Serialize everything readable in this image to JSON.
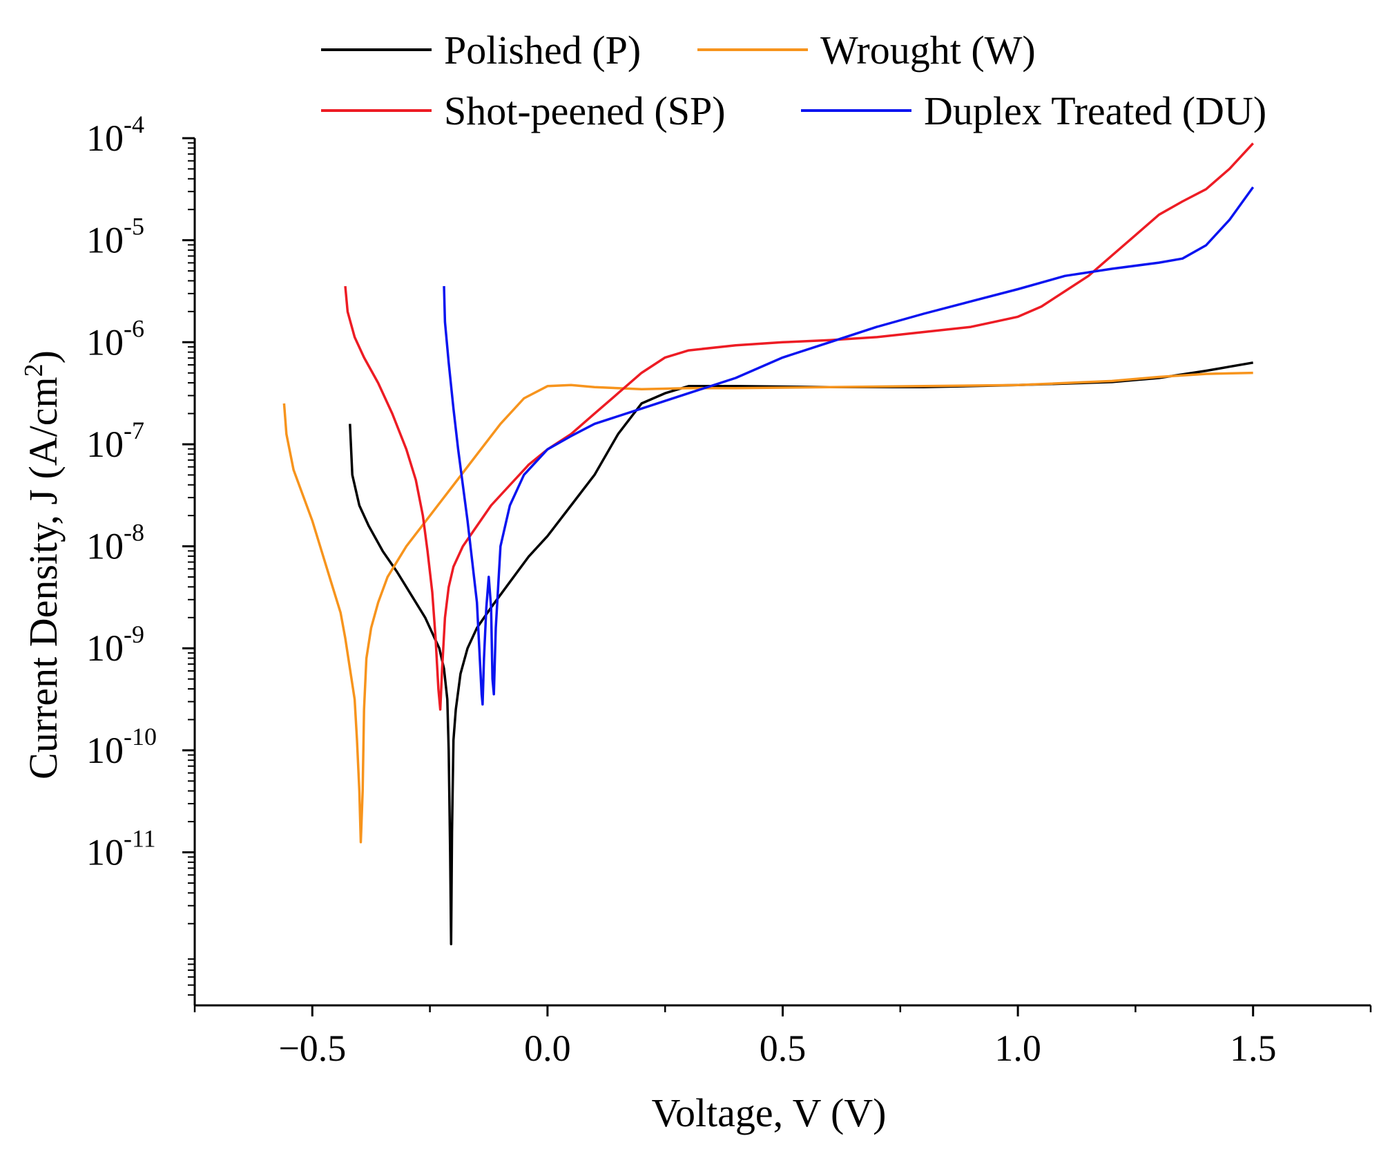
{
  "chart_data": {
    "type": "line",
    "title": "",
    "xlabel": "Voltage, V (V)",
    "ylabel": "Current Density, J (A/cm",
    "ylabel_sup": "2",
    "ylabel_close": ")",
    "xlim": [
      -0.75,
      1.75
    ],
    "ylim_exp": [
      -12.5,
      -4
    ],
    "yscale": "log",
    "x_ticks": [
      {
        "value": -0.5,
        "label": "−0.5"
      },
      {
        "value": 0.0,
        "label": "0.0"
      },
      {
        "value": 0.5,
        "label": "0.5"
      },
      {
        "value": 1.0,
        "label": "1.0"
      },
      {
        "value": 1.5,
        "label": "1.5"
      }
    ],
    "y_ticks": [
      {
        "exp": -4,
        "base": "10",
        "sup": "-4"
      },
      {
        "exp": -5,
        "base": "10",
        "sup": "-5"
      },
      {
        "exp": -6,
        "base": "10",
        "sup": "-6"
      },
      {
        "exp": -7,
        "base": "10",
        "sup": "-7"
      },
      {
        "exp": -8,
        "base": "10",
        "sup": "-8"
      },
      {
        "exp": -9,
        "base": "10",
        "sup": "-9"
      },
      {
        "exp": -10,
        "base": "10",
        "sup": "-10"
      },
      {
        "exp": -11,
        "base": "10",
        "sup": "-11"
      }
    ],
    "legend": [
      {
        "name": "Polished (P)",
        "color": "#000000"
      },
      {
        "name": "Wrought (W)",
        "color": "#f7941d"
      },
      {
        "name": "Shot-peened (SP)",
        "color": "#ed1c24"
      },
      {
        "name": "Duplex Treated (DU)",
        "color": "#0a14f0"
      }
    ],
    "series": [
      {
        "name": "Polished (P)",
        "color": "#000000",
        "points": [
          [
            -0.42,
            -6.8
          ],
          [
            -0.415,
            -7.3
          ],
          [
            -0.4,
            -7.6
          ],
          [
            -0.38,
            -7.8
          ],
          [
            -0.35,
            -8.05
          ],
          [
            -0.32,
            -8.25
          ],
          [
            -0.3,
            -8.4
          ],
          [
            -0.28,
            -8.55
          ],
          [
            -0.26,
            -8.7
          ],
          [
            -0.25,
            -8.8
          ],
          [
            -0.24,
            -8.9
          ],
          [
            -0.23,
            -9.0
          ],
          [
            -0.22,
            -9.2
          ],
          [
            -0.213,
            -9.5
          ],
          [
            -0.21,
            -10.0
          ],
          [
            -0.207,
            -11.0
          ],
          [
            -0.205,
            -11.9
          ],
          [
            -0.203,
            -10.8
          ],
          [
            -0.2,
            -9.9
          ],
          [
            -0.195,
            -9.6
          ],
          [
            -0.185,
            -9.25
          ],
          [
            -0.17,
            -9.0
          ],
          [
            -0.15,
            -8.8
          ],
          [
            -0.12,
            -8.6
          ],
          [
            -0.08,
            -8.35
          ],
          [
            -0.04,
            -8.1
          ],
          [
            0.0,
            -7.9
          ],
          [
            0.05,
            -7.6
          ],
          [
            0.1,
            -7.3
          ],
          [
            0.15,
            -6.9
          ],
          [
            0.2,
            -6.6
          ],
          [
            0.25,
            -6.5
          ],
          [
            0.3,
            -6.43
          ],
          [
            0.4,
            -6.43
          ],
          [
            0.6,
            -6.44
          ],
          [
            0.8,
            -6.44
          ],
          [
            1.0,
            -6.42
          ],
          [
            1.2,
            -6.39
          ],
          [
            1.3,
            -6.35
          ],
          [
            1.4,
            -6.28
          ],
          [
            1.5,
            -6.2
          ]
        ]
      },
      {
        "name": "Wrought (W)",
        "color": "#f7941d",
        "points": [
          [
            -0.56,
            -6.6
          ],
          [
            -0.555,
            -6.9
          ],
          [
            -0.54,
            -7.25
          ],
          [
            -0.52,
            -7.5
          ],
          [
            -0.5,
            -7.75
          ],
          [
            -0.48,
            -8.05
          ],
          [
            -0.46,
            -8.35
          ],
          [
            -0.44,
            -8.65
          ],
          [
            -0.43,
            -8.9
          ],
          [
            -0.42,
            -9.2
          ],
          [
            -0.41,
            -9.5
          ],
          [
            -0.405,
            -9.9
          ],
          [
            -0.4,
            -10.4
          ],
          [
            -0.397,
            -10.9
          ],
          [
            -0.393,
            -10.4
          ],
          [
            -0.39,
            -9.6
          ],
          [
            -0.385,
            -9.1
          ],
          [
            -0.375,
            -8.8
          ],
          [
            -0.36,
            -8.55
          ],
          [
            -0.34,
            -8.3
          ],
          [
            -0.3,
            -8.0
          ],
          [
            -0.25,
            -7.7
          ],
          [
            -0.2,
            -7.4
          ],
          [
            -0.15,
            -7.1
          ],
          [
            -0.1,
            -6.8
          ],
          [
            -0.05,
            -6.55
          ],
          [
            0.0,
            -6.43
          ],
          [
            0.05,
            -6.42
          ],
          [
            0.1,
            -6.44
          ],
          [
            0.2,
            -6.46
          ],
          [
            0.3,
            -6.45
          ],
          [
            0.4,
            -6.45
          ],
          [
            0.6,
            -6.44
          ],
          [
            0.8,
            -6.43
          ],
          [
            1.0,
            -6.42
          ],
          [
            1.2,
            -6.38
          ],
          [
            1.3,
            -6.34
          ],
          [
            1.4,
            -6.31
          ],
          [
            1.5,
            -6.3
          ]
        ]
      },
      {
        "name": "Shot-peened (SP)",
        "color": "#ed1c24",
        "points": [
          [
            -0.43,
            -5.45
          ],
          [
            -0.425,
            -5.7
          ],
          [
            -0.41,
            -5.95
          ],
          [
            -0.39,
            -6.15
          ],
          [
            -0.36,
            -6.4
          ],
          [
            -0.33,
            -6.7
          ],
          [
            -0.3,
            -7.05
          ],
          [
            -0.28,
            -7.35
          ],
          [
            -0.265,
            -7.7
          ],
          [
            -0.255,
            -8.05
          ],
          [
            -0.245,
            -8.45
          ],
          [
            -0.238,
            -8.9
          ],
          [
            -0.232,
            -9.4
          ],
          [
            -0.228,
            -9.6
          ],
          [
            -0.224,
            -9.2
          ],
          [
            -0.218,
            -8.7
          ],
          [
            -0.21,
            -8.4
          ],
          [
            -0.2,
            -8.2
          ],
          [
            -0.18,
            -8.0
          ],
          [
            -0.15,
            -7.8
          ],
          [
            -0.12,
            -7.6
          ],
          [
            -0.08,
            -7.4
          ],
          [
            -0.04,
            -7.2
          ],
          [
            0.0,
            -7.05
          ],
          [
            0.05,
            -6.9
          ],
          [
            0.1,
            -6.7
          ],
          [
            0.15,
            -6.5
          ],
          [
            0.2,
            -6.3
          ],
          [
            0.25,
            -6.15
          ],
          [
            0.3,
            -6.08
          ],
          [
            0.4,
            -6.03
          ],
          [
            0.5,
            -6.0
          ],
          [
            0.6,
            -5.98
          ],
          [
            0.7,
            -5.95
          ],
          [
            0.8,
            -5.9
          ],
          [
            0.9,
            -5.85
          ],
          [
            0.95,
            -5.8
          ],
          [
            1.0,
            -5.75
          ],
          [
            1.05,
            -5.65
          ],
          [
            1.1,
            -5.5
          ],
          [
            1.15,
            -5.35
          ],
          [
            1.2,
            -5.15
          ],
          [
            1.25,
            -4.95
          ],
          [
            1.3,
            -4.75
          ],
          [
            1.35,
            -4.62
          ],
          [
            1.4,
            -4.5
          ],
          [
            1.45,
            -4.3
          ],
          [
            1.5,
            -4.05
          ]
        ]
      },
      {
        "name": "Duplex Treated (DU)",
        "color": "#0a14f0",
        "points": [
          [
            -0.22,
            -5.45
          ],
          [
            -0.218,
            -5.8
          ],
          [
            -0.21,
            -6.2
          ],
          [
            -0.2,
            -6.65
          ],
          [
            -0.19,
            -7.05
          ],
          [
            -0.18,
            -7.4
          ],
          [
            -0.17,
            -7.75
          ],
          [
            -0.16,
            -8.15
          ],
          [
            -0.15,
            -8.55
          ],
          [
            -0.145,
            -9.0
          ],
          [
            -0.14,
            -9.45
          ],
          [
            -0.138,
            -9.55
          ],
          [
            -0.135,
            -9.1
          ],
          [
            -0.13,
            -8.6
          ],
          [
            -0.125,
            -8.3
          ],
          [
            -0.12,
            -8.6
          ],
          [
            -0.117,
            -9.3
          ],
          [
            -0.114,
            -9.45
          ],
          [
            -0.11,
            -8.8
          ],
          [
            -0.1,
            -8.0
          ],
          [
            -0.08,
            -7.6
          ],
          [
            -0.05,
            -7.3
          ],
          [
            0.0,
            -7.05
          ],
          [
            0.05,
            -6.92
          ],
          [
            0.1,
            -6.8
          ],
          [
            0.2,
            -6.65
          ],
          [
            0.3,
            -6.5
          ],
          [
            0.4,
            -6.35
          ],
          [
            0.5,
            -6.15
          ],
          [
            0.6,
            -6.0
          ],
          [
            0.7,
            -5.85
          ],
          [
            0.8,
            -5.72
          ],
          [
            0.9,
            -5.6
          ],
          [
            1.0,
            -5.48
          ],
          [
            1.1,
            -5.35
          ],
          [
            1.2,
            -5.28
          ],
          [
            1.3,
            -5.22
          ],
          [
            1.35,
            -5.18
          ],
          [
            1.4,
            -5.05
          ],
          [
            1.45,
            -4.8
          ],
          [
            1.5,
            -4.48
          ]
        ]
      }
    ]
  }
}
